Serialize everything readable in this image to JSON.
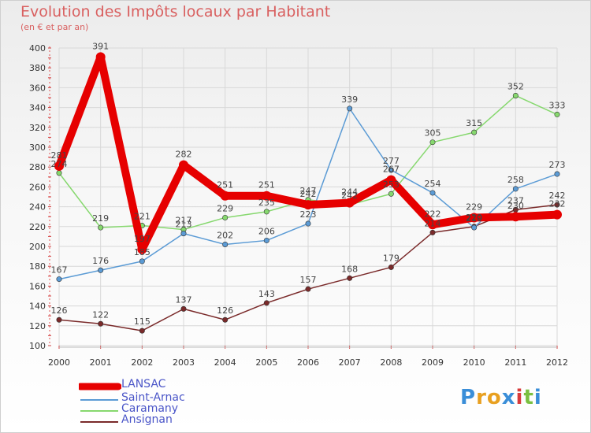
{
  "header": {
    "title": "Evolution des Impôts locaux par Habitant",
    "subtitle": "(en € et par an)"
  },
  "logo": {
    "text": "Proxiti"
  },
  "chart_data": {
    "type": "line",
    "title": "Evolution des Impôts locaux par Habitant",
    "subtitle": "(en € et par an)",
    "xlabel": "",
    "ylabel": "",
    "categories": [
      "2000",
      "2001",
      "2002",
      "2003",
      "2004",
      "2005",
      "2006",
      "2007",
      "2008",
      "2009",
      "2010",
      "2011",
      "2012"
    ],
    "ylim": [
      100,
      400
    ],
    "yticks": [
      100,
      120,
      140,
      160,
      180,
      200,
      220,
      240,
      260,
      280,
      300,
      320,
      340,
      360,
      380,
      400
    ],
    "grid": true,
    "legend_position": "bottom-left",
    "series": [
      {
        "name": "LANSAC",
        "color": "#e60000",
        "values": [
          281,
          391,
          197,
          282,
          251,
          251,
          242,
          244,
          267,
          222,
          229,
          230,
          232
        ]
      },
      {
        "name": "Saint-Arnac",
        "color": "#5b9bd5",
        "values": [
          167,
          176,
          185,
          213,
          202,
          206,
          223,
          339,
          277,
          254,
          219,
          258,
          273
        ]
      },
      {
        "name": "Caramany",
        "color": "#86d86e",
        "values": [
          274,
          219,
          221,
          217,
          229,
          235,
          247,
          242,
          253,
          305,
          315,
          352,
          333
        ]
      },
      {
        "name": "Ansignan",
        "color": "#7a2a2a",
        "values": [
          126,
          122,
          115,
          137,
          126,
          143,
          157,
          168,
          179,
          214,
          220,
          237,
          242
        ]
      }
    ]
  }
}
